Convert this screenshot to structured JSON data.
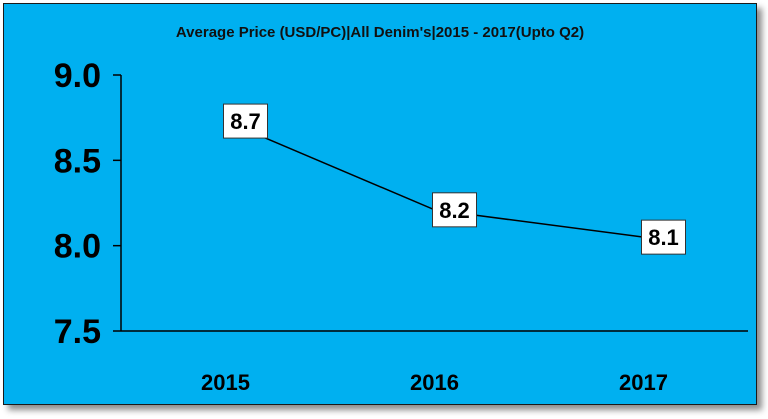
{
  "chart_data": {
    "type": "line",
    "title": "Average Price (USD/PC)|All Denim's|2015 - 2017(Upto Q2)",
    "categories": [
      "2015",
      "2016",
      "2017"
    ],
    "series": [
      {
        "values": [
          8.73,
          8.21,
          8.05
        ]
      }
    ],
    "data_labels": [
      "8.7",
      "8.2",
      "8.1"
    ],
    "ylim": [
      7.5,
      9.0
    ],
    "yticks": [
      "7.5",
      "8.0",
      "8.5",
      "9.0"
    ],
    "grid": false,
    "background_color": "#00b0f0",
    "line_color": "#000000",
    "marker_color": "#c00000"
  }
}
